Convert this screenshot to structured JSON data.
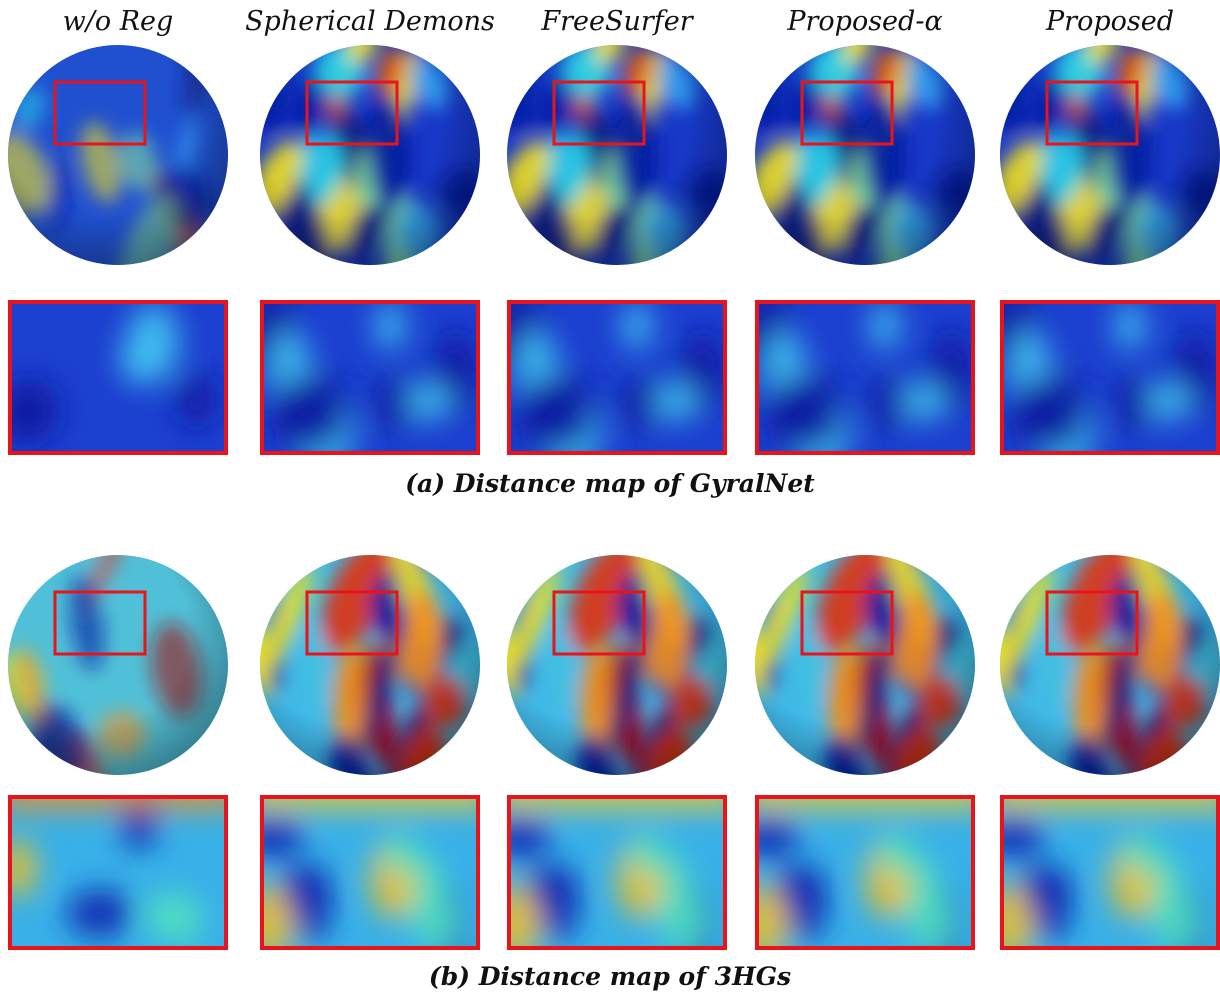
{
  "columns": [
    "w/o Reg",
    "Spherical Demons",
    "FreeSurfer",
    "Proposed-α",
    "Proposed"
  ],
  "captions": [
    "(a) Distance map of GyralNet",
    "(b) Distance map of 3HGs"
  ]
}
